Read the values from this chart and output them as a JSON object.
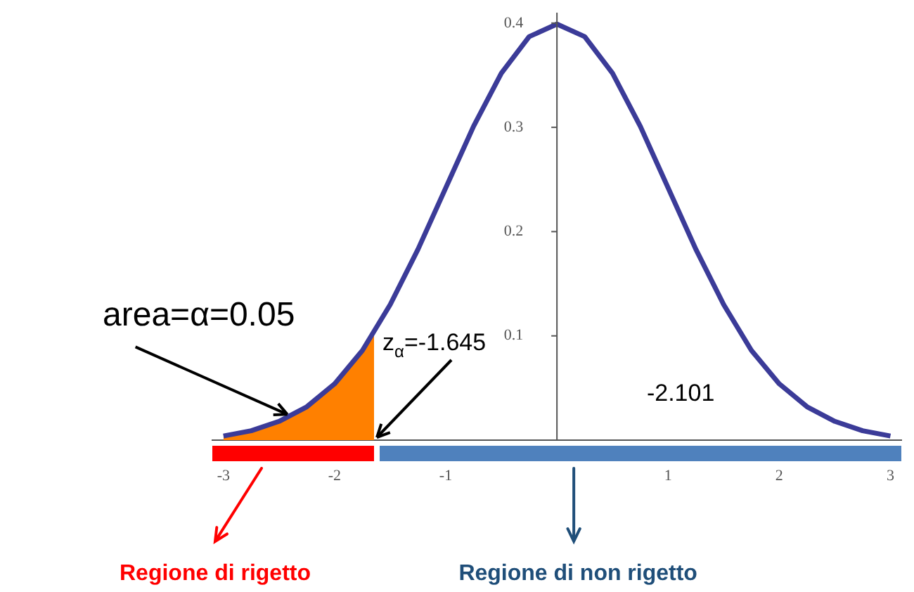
{
  "chart_data": {
    "type": "line",
    "xlim": [
      -3.1,
      3.1
    ],
    "xticks": [
      -3,
      -2,
      -1,
      1,
      2,
      3
    ],
    "ylim": [
      0,
      0.41
    ],
    "yticks": [
      0.1,
      0.2,
      0.3,
      0.4
    ],
    "grid": false,
    "legend": false,
    "marker": "none",
    "line_style": "solid",
    "series": [
      {
        "type": "line",
        "color": "#3b3b98",
        "x": [
          -3,
          -2.75,
          -2.5,
          -2.25,
          -2,
          -1.75,
          -1.5,
          -1.25,
          -1,
          -0.75,
          -0.5,
          -0.25,
          0,
          0.25,
          0.5,
          0.75,
          1,
          1.25,
          1.5,
          1.75,
          2,
          2.25,
          2.5,
          2.75,
          3
        ],
        "values": [
          0.004,
          0.009,
          0.018,
          0.032,
          0.054,
          0.086,
          0.13,
          0.183,
          0.242,
          0.301,
          0.352,
          0.387,
          0.399,
          0.387,
          0.352,
          0.301,
          0.242,
          0.183,
          0.13,
          0.086,
          0.054,
          0.032,
          0.018,
          0.009,
          0.004
        ]
      },
      {
        "type": "area",
        "color": "#ff8000",
        "x": [
          -3,
          -2.75,
          -2.5,
          -2.25,
          -2,
          -1.75,
          -1.645
        ],
        "values": [
          0.004,
          0.009,
          0.018,
          0.032,
          0.054,
          0.086,
          0.103
        ]
      }
    ],
    "annotations": [
      {
        "text": "area=α=0.05",
        "x": -2.4,
        "y": 0.022
      },
      {
        "text": "z$_{α}$=-1.645",
        "x": -1.645,
        "y": 0
      },
      "-2.101",
      "Regione di rigetto",
      "Regione di non rigetto"
    ]
  }
}
